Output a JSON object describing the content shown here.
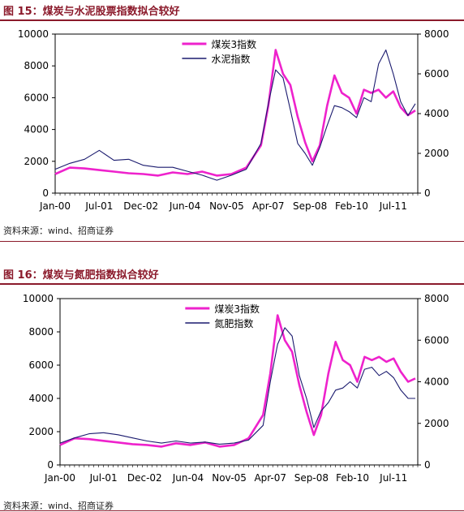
{
  "figures": [
    {
      "title": "图 15：煤炭与水泥股票指数拟合较好",
      "source": "资料来源：wind、招商证券"
    },
    {
      "title": "图 16：煤炭与氮肥指数拟合较好",
      "source": "资料来源：wind、招商证券"
    }
  ],
  "chart_data": [
    {
      "type": "line",
      "x_tick_labels": [
        "Jan-00",
        "Jul-01",
        "Dec-02",
        "Jun-04",
        "Nov-05",
        "Apr-07",
        "Sep-08",
        "Feb-10",
        "Jul-11"
      ],
      "x": [
        "2000-01",
        "2000-07",
        "2001-01",
        "2001-07",
        "2002-01",
        "2002-07",
        "2003-01",
        "2003-07",
        "2004-01",
        "2004-07",
        "2005-01",
        "2005-07",
        "2006-01",
        "2006-07",
        "2007-01",
        "2007-04",
        "2007-07",
        "2007-10",
        "2008-01",
        "2008-04",
        "2008-07",
        "2008-10",
        "2009-01",
        "2009-04",
        "2009-07",
        "2009-10",
        "2010-01",
        "2010-04",
        "2010-07",
        "2010-10",
        "2011-01",
        "2011-04",
        "2011-07",
        "2011-10",
        "2012-01",
        "2012-04"
      ],
      "ylim_left": [
        0,
        10000
      ],
      "yticks_left": [
        0,
        2000,
        4000,
        6000,
        8000,
        10000
      ],
      "ylim_right": [
        0,
        8000
      ],
      "yticks_right": [
        0,
        2000,
        4000,
        6000,
        8000
      ],
      "legend_position": "top-center",
      "series": [
        {
          "name": "煤炭3指数",
          "axis": "left",
          "color": "#ee22cc",
          "values": [
            1200,
            1600,
            1550,
            1450,
            1350,
            1250,
            1200,
            1100,
            1300,
            1200,
            1350,
            1100,
            1200,
            1600,
            3000,
            5500,
            9000,
            7500,
            6800,
            4800,
            3200,
            2000,
            3000,
            5500,
            7400,
            6300,
            6000,
            5000,
            6500,
            6300,
            6500,
            6000,
            6400,
            5400,
            4900,
            5200
          ]
        },
        {
          "name": "水泥指数",
          "axis": "right",
          "color": "#1a1a6e",
          "values": [
            1200,
            1500,
            1700,
            2150,
            1650,
            1700,
            1400,
            1300,
            1300,
            1100,
            900,
            650,
            900,
            1200,
            2500,
            4500,
            6200,
            5800,
            4200,
            2500,
            2000,
            1400,
            2300,
            3400,
            4400,
            4300,
            4100,
            3800,
            4800,
            4600,
            6500,
            7200,
            6000,
            4600,
            3900,
            4500
          ]
        }
      ]
    },
    {
      "type": "line",
      "x_tick_labels": [
        "Jan-00",
        "Jul-01",
        "Dec-02",
        "Jun-04",
        "Nov-05",
        "Apr-07",
        "Sep-08",
        "Feb-10",
        "Jul-11"
      ],
      "x": [
        "2000-01",
        "2000-07",
        "2001-01",
        "2001-07",
        "2002-01",
        "2002-07",
        "2003-01",
        "2003-07",
        "2004-01",
        "2004-07",
        "2005-01",
        "2005-07",
        "2006-01",
        "2006-07",
        "2007-01",
        "2007-04",
        "2007-07",
        "2007-10",
        "2008-01",
        "2008-04",
        "2008-07",
        "2008-10",
        "2009-01",
        "2009-04",
        "2009-07",
        "2009-10",
        "2010-01",
        "2010-04",
        "2010-07",
        "2010-10",
        "2011-01",
        "2011-04",
        "2011-07",
        "2011-10",
        "2012-01",
        "2012-04"
      ],
      "ylim_left": [
        0,
        10000
      ],
      "yticks_left": [
        0,
        2000,
        4000,
        6000,
        8000,
        10000
      ],
      "ylim_right": [
        0,
        8000
      ],
      "yticks_right": [
        0,
        2000,
        4000,
        6000,
        8000
      ],
      "legend_position": "top-center",
      "series": [
        {
          "name": "煤炭3指数",
          "axis": "left",
          "color": "#ee22cc",
          "values": [
            1200,
            1600,
            1550,
            1450,
            1350,
            1250,
            1200,
            1100,
            1300,
            1200,
            1350,
            1100,
            1200,
            1600,
            3000,
            5500,
            9000,
            7500,
            6800,
            4800,
            3200,
            1800,
            3000,
            5500,
            7400,
            6300,
            6000,
            5000,
            6500,
            6300,
            6500,
            6200,
            6400,
            5600,
            5000,
            5200
          ]
        },
        {
          "name": "氮肥指数",
          "axis": "right",
          "color": "#1a1a6e",
          "values": [
            1050,
            1300,
            1500,
            1550,
            1450,
            1300,
            1150,
            1050,
            1150,
            1050,
            1100,
            1000,
            1050,
            1200,
            1900,
            4000,
            5800,
            6600,
            6200,
            4300,
            3200,
            1800,
            2600,
            3000,
            3600,
            3700,
            4000,
            3700,
            4600,
            4700,
            4300,
            4500,
            4200,
            3600,
            3200,
            3200
          ]
        }
      ]
    }
  ]
}
